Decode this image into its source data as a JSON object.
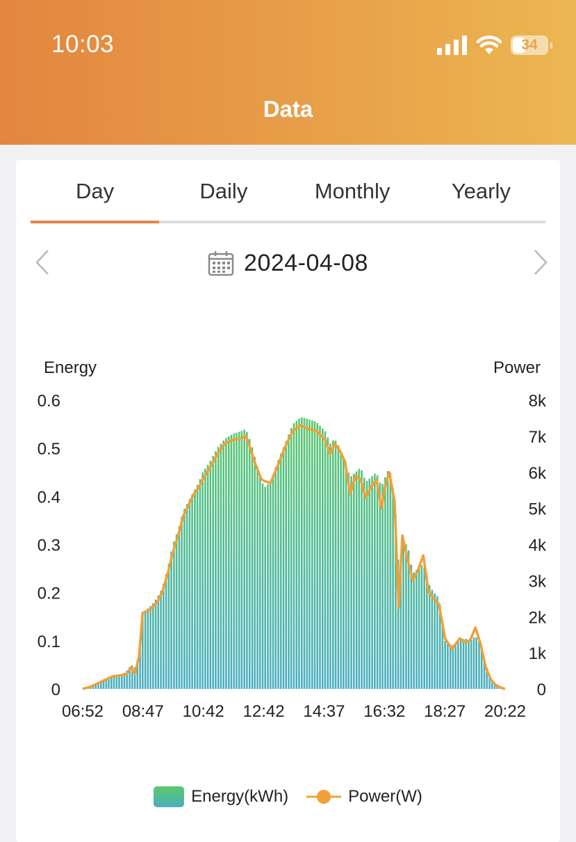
{
  "status_bar": {
    "time": "10:03",
    "battery": "34"
  },
  "header": {
    "title": "Data"
  },
  "tabs": [
    {
      "label": "Day",
      "active": true
    },
    {
      "label": "Daily",
      "active": false
    },
    {
      "label": "Monthly",
      "active": false
    },
    {
      "label": "Yearly",
      "active": false
    }
  ],
  "date_picker": {
    "date": "2024-04-08"
  },
  "colors": {
    "accent": "#e6864a",
    "energy_top": "#5cc969",
    "energy_bottom": "#4aaec0",
    "power_line": "#f0a037"
  },
  "icons": {
    "prev": "chevron-left-icon",
    "next": "chevron-right-icon",
    "calendar": "calendar-icon"
  },
  "chart_data": {
    "type": "bar+line",
    "ylabel_left": "Energy",
    "ylabel_right": "Power",
    "ylim_left": [
      0,
      0.6
    ],
    "ylim_right": [
      0,
      8000
    ],
    "yticks_left": [
      "0",
      "0.1",
      "0.2",
      "0.3",
      "0.4",
      "0.5",
      "0.6"
    ],
    "yticks_right": [
      "0",
      "1k",
      "2k",
      "3k",
      "4k",
      "5k",
      "6k",
      "7k",
      "8k"
    ],
    "x_tick_labels": [
      "06:52",
      "08:47",
      "10:42",
      "12:42",
      "14:37",
      "16:32",
      "18:27",
      "20:22"
    ],
    "x_range_minutes": [
      "06:52",
      "20:22"
    ],
    "series": [
      {
        "name": "Energy(kWh)",
        "type": "bar"
      },
      {
        "name": "Power(W)",
        "type": "line"
      }
    ],
    "energy_points": [
      [
        "06:52",
        0
      ],
      [
        "07:05",
        0.002
      ],
      [
        "07:20",
        0.01
      ],
      [
        "07:35",
        0.02
      ],
      [
        "07:50",
        0.025
      ],
      [
        "08:05",
        0.03
      ],
      [
        "08:15",
        0.035
      ],
      [
        "08:25",
        0.05
      ],
      [
        "08:32",
        0.045
      ],
      [
        "08:40",
        0.07
      ],
      [
        "08:47",
        0.16
      ],
      [
        "08:55",
        0.165
      ],
      [
        "09:05",
        0.175
      ],
      [
        "09:15",
        0.19
      ],
      [
        "09:25",
        0.21
      ],
      [
        "09:35",
        0.25
      ],
      [
        "09:45",
        0.3
      ],
      [
        "09:55",
        0.33
      ],
      [
        "10:05",
        0.37
      ],
      [
        "10:15",
        0.39
      ],
      [
        "10:25",
        0.41
      ],
      [
        "10:35",
        0.43
      ],
      [
        "10:42",
        0.45
      ],
      [
        "10:55",
        0.47
      ],
      [
        "11:10",
        0.5
      ],
      [
        "11:25",
        0.52
      ],
      [
        "11:40",
        0.53
      ],
      [
        "11:55",
        0.535
      ],
      [
        "12:05",
        0.54
      ],
      [
        "12:15",
        0.51
      ],
      [
        "12:25",
        0.47
      ],
      [
        "12:35",
        0.43
      ],
      [
        "12:42",
        0.42
      ],
      [
        "12:52",
        0.43
      ],
      [
        "13:05",
        0.47
      ],
      [
        "13:20",
        0.51
      ],
      [
        "13:35",
        0.55
      ],
      [
        "13:50",
        0.565
      ],
      [
        "14:05",
        0.56
      ],
      [
        "14:20",
        0.555
      ],
      [
        "14:37",
        0.535
      ],
      [
        "14:47",
        0.51
      ],
      [
        "14:55",
        0.52
      ],
      [
        "15:05",
        0.5
      ],
      [
        "15:15",
        0.47
      ],
      [
        "15:25",
        0.44
      ],
      [
        "15:35",
        0.45
      ],
      [
        "15:45",
        0.46
      ],
      [
        "15:55",
        0.43
      ],
      [
        "16:05",
        0.44
      ],
      [
        "16:15",
        0.45
      ],
      [
        "16:25",
        0.42
      ],
      [
        "16:32",
        0.44
      ],
      [
        "16:40",
        0.46
      ],
      [
        "16:50",
        0.4
      ],
      [
        "16:58",
        0.25
      ],
      [
        "17:05",
        0.3
      ],
      [
        "17:15",
        0.3
      ],
      [
        "17:25",
        0.24
      ],
      [
        "17:35",
        0.25
      ],
      [
        "17:45",
        0.26
      ],
      [
        "17:55",
        0.22
      ],
      [
        "18:05",
        0.2
      ],
      [
        "18:15",
        0.19
      ],
      [
        "18:27",
        0.1
      ],
      [
        "18:40",
        0.09
      ],
      [
        "18:55",
        0.1
      ],
      [
        "19:05",
        0.105
      ],
      [
        "19:15",
        0.1
      ],
      [
        "19:25",
        0.11
      ],
      [
        "19:35",
        0.095
      ],
      [
        "19:45",
        0.05
      ],
      [
        "19:55",
        0.02
      ],
      [
        "20:05",
        0.008
      ],
      [
        "20:15",
        0.002
      ],
      [
        "20:22",
        0
      ]
    ],
    "power_points": [
      [
        "06:52",
        0
      ],
      [
        "07:05",
        50
      ],
      [
        "07:20",
        150
      ],
      [
        "07:35",
        250
      ],
      [
        "07:50",
        350
      ],
      [
        "08:05",
        380
      ],
      [
        "08:15",
        400
      ],
      [
        "08:25",
        600
      ],
      [
        "08:32",
        420
      ],
      [
        "08:40",
        900
      ],
      [
        "08:47",
        2100
      ],
      [
        "08:55",
        2150
      ],
      [
        "09:05",
        2250
      ],
      [
        "09:15",
        2400
      ],
      [
        "09:25",
        2700
      ],
      [
        "09:35",
        3200
      ],
      [
        "09:45",
        3800
      ],
      [
        "09:55",
        4250
      ],
      [
        "10:05",
        4800
      ],
      [
        "10:15",
        5100
      ],
      [
        "10:25",
        5400
      ],
      [
        "10:35",
        5600
      ],
      [
        "10:42",
        5800
      ],
      [
        "10:55",
        6100
      ],
      [
        "11:10",
        6500
      ],
      [
        "11:25",
        6800
      ],
      [
        "11:40",
        6900
      ],
      [
        "11:55",
        6950
      ],
      [
        "12:05",
        7000
      ],
      [
        "12:15",
        6600
      ],
      [
        "12:25",
        6150
      ],
      [
        "12:35",
        5800
      ],
      [
        "12:42",
        5750
      ],
      [
        "12:52",
        5700
      ],
      [
        "13:05",
        6150
      ],
      [
        "13:20",
        6700
      ],
      [
        "13:35",
        7150
      ],
      [
        "13:50",
        7300
      ],
      [
        "14:05",
        7200
      ],
      [
        "14:20",
        7150
      ],
      [
        "14:37",
        6900
      ],
      [
        "14:47",
        6500
      ],
      [
        "14:55",
        6800
      ],
      [
        "15:05",
        6600
      ],
      [
        "15:15",
        6300
      ],
      [
        "15:25",
        5400
      ],
      [
        "15:35",
        5900
      ],
      [
        "15:45",
        5800
      ],
      [
        "15:55",
        5300
      ],
      [
        "16:05",
        5600
      ],
      [
        "16:15",
        5800
      ],
      [
        "16:25",
        5000
      ],
      [
        "16:32",
        5600
      ],
      [
        "16:40",
        6000
      ],
      [
        "16:50",
        5200
      ],
      [
        "16:58",
        2250
      ],
      [
        "17:05",
        4250
      ],
      [
        "17:15",
        3600
      ],
      [
        "17:25",
        3000
      ],
      [
        "17:35",
        3300
      ],
      [
        "17:45",
        3700
      ],
      [
        "17:55",
        2700
      ],
      [
        "18:05",
        2500
      ],
      [
        "18:15",
        2350
      ],
      [
        "18:27",
        1400
      ],
      [
        "18:40",
        1100
      ],
      [
        "18:55",
        1400
      ],
      [
        "19:05",
        1300
      ],
      [
        "19:15",
        1350
      ],
      [
        "19:25",
        1700
      ],
      [
        "19:35",
        1250
      ],
      [
        "19:45",
        600
      ],
      [
        "19:55",
        250
      ],
      [
        "20:05",
        100
      ],
      [
        "20:15",
        30
      ],
      [
        "20:22",
        0
      ]
    ]
  }
}
